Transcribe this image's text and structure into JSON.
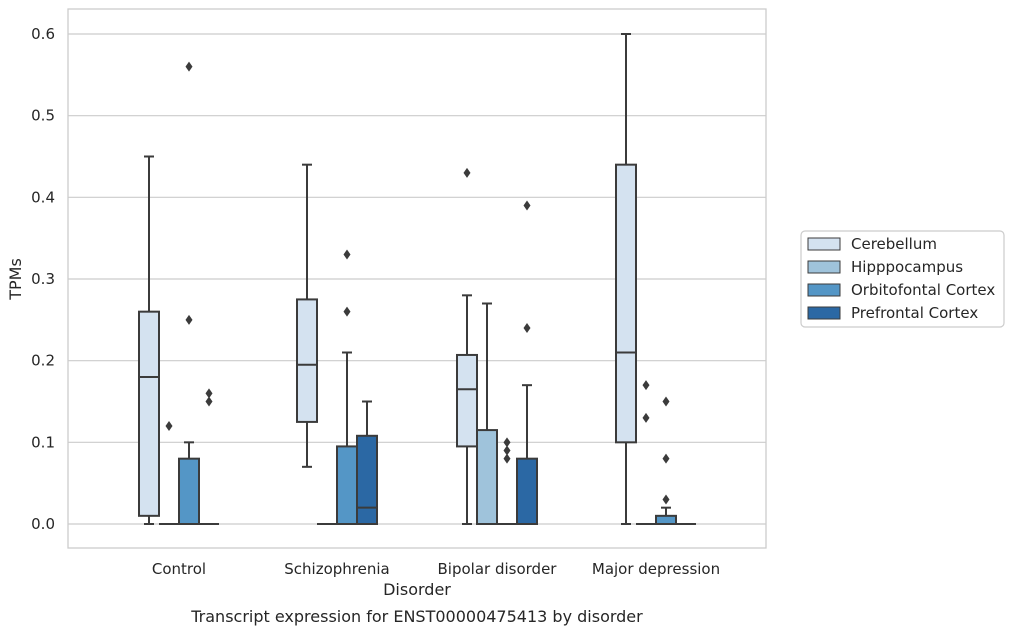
{
  "chart_data": {
    "type": "box",
    "title": "",
    "caption": "Transcript expression for ENST00000475413 by disorder",
    "xlabel": "Disorder",
    "ylabel": "TPMs",
    "ylim": [
      -0.03,
      0.63
    ],
    "yticks": [
      "0.0",
      "0.1",
      "0.2",
      "0.3",
      "0.4",
      "0.5",
      "0.6"
    ],
    "grid": "horizontal",
    "legend_position": "right",
    "categories": [
      "Control",
      "Schizophrenia",
      "Bipolar disorder",
      "Major depression"
    ],
    "series": [
      {
        "name": "Cerebellum",
        "color": "#d4e2f0",
        "boxes": [
          {
            "q1": 0.01,
            "median": 0.18,
            "q3": 0.26,
            "whisker_low": 0.0,
            "whisker_high": 0.45,
            "outliers": []
          },
          {
            "q1": 0.125,
            "median": 0.195,
            "q3": 0.275,
            "whisker_low": 0.07,
            "whisker_high": 0.44,
            "outliers": []
          },
          {
            "q1": 0.095,
            "median": 0.165,
            "q3": 0.207,
            "whisker_low": 0.0,
            "whisker_high": 0.28,
            "outliers": [
              0.43
            ]
          },
          {
            "q1": 0.1,
            "median": 0.21,
            "q3": 0.44,
            "whisker_low": 0.0,
            "whisker_high": 0.6,
            "outliers": []
          }
        ]
      },
      {
        "name": "Hipppocampus",
        "color": "#9fc3db",
        "boxes": [
          {
            "q1": 0.0,
            "median": 0.0,
            "q3": 0.0,
            "whisker_low": 0.0,
            "whisker_high": 0.0,
            "outliers": [
              0.12
            ]
          },
          {
            "q1": 0.0,
            "median": 0.0,
            "q3": 0.0,
            "whisker_low": 0.0,
            "whisker_high": 0.0,
            "outliers": []
          },
          {
            "q1": 0.0,
            "median": 0.0,
            "q3": 0.115,
            "whisker_low": 0.0,
            "whisker_high": 0.27,
            "outliers": []
          },
          {
            "q1": 0.0,
            "median": 0.0,
            "q3": 0.0,
            "whisker_low": 0.0,
            "whisker_high": 0.0,
            "outliers": [
              0.17,
              0.13
            ]
          }
        ]
      },
      {
        "name": "Orbitofontal Cortex",
        "color": "#5496c6",
        "boxes": [
          {
            "q1": 0.0,
            "median": 0.0,
            "q3": 0.08,
            "whisker_low": 0.0,
            "whisker_high": 0.1,
            "outliers": [
              0.56,
              0.25
            ]
          },
          {
            "q1": 0.0,
            "median": 0.0,
            "q3": 0.095,
            "whisker_low": 0.0,
            "whisker_high": 0.21,
            "outliers": [
              0.33,
              0.26
            ]
          },
          {
            "q1": 0.0,
            "median": 0.0,
            "q3": 0.0,
            "whisker_low": 0.0,
            "whisker_high": 0.0,
            "outliers": [
              0.1,
              0.09,
              0.08
            ]
          },
          {
            "q1": 0.0,
            "median": 0.0,
            "q3": 0.01,
            "whisker_low": 0.0,
            "whisker_high": 0.02,
            "outliers": [
              0.15,
              0.08,
              0.03
            ]
          }
        ]
      },
      {
        "name": "Prefrontal Cortex",
        "color": "#2b68a4",
        "boxes": [
          {
            "q1": 0.0,
            "median": 0.0,
            "q3": 0.0,
            "whisker_low": 0.0,
            "whisker_high": 0.0,
            "outliers": [
              0.16,
              0.15
            ]
          },
          {
            "q1": 0.0,
            "median": 0.02,
            "q3": 0.108,
            "whisker_low": 0.0,
            "whisker_high": 0.15,
            "outliers": []
          },
          {
            "q1": 0.0,
            "median": 0.0,
            "q3": 0.08,
            "whisker_low": 0.0,
            "whisker_high": 0.17,
            "outliers": [
              0.39,
              0.24
            ]
          },
          {
            "q1": 0.0,
            "median": 0.0,
            "q3": 0.0,
            "whisker_low": 0.0,
            "whisker_high": 0.0,
            "outliers": []
          }
        ]
      }
    ]
  },
  "colors": {
    "background": "#ffffff",
    "grid": "#cccccc",
    "frame": "#cccccc",
    "box_edge": "#3b3b3b"
  }
}
